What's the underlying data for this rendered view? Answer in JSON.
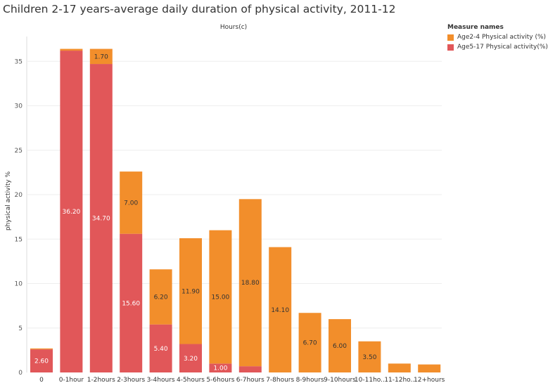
{
  "chart_data": {
    "type": "bar",
    "stacked": true,
    "title": "Children 2-17 years-average daily duration of physical activity, 2011-12",
    "xlabel": "Hours(c)",
    "ylabel": "physical activity %",
    "ylim": [
      0,
      37.5
    ],
    "yticks": [
      0,
      5,
      10,
      15,
      20,
      25,
      30,
      35
    ],
    "grid": true,
    "legend_title": "Measure names",
    "legend_position": "top-right",
    "categories": [
      "0",
      "0-1hour",
      "1-2hours",
      "2-3hours",
      "3-4hours",
      "4-5hours",
      "5-6hours",
      "6-7hours",
      "7-8hours",
      "8-9hours",
      "9-10hours",
      "10-11ho..",
      "11-12ho..",
      "12+hours"
    ],
    "series": [
      {
        "name": "Age5-17 Physical activity(%)",
        "color": "#e15759",
        "values": [
          2.6,
          36.2,
          34.7,
          15.6,
          5.4,
          3.2,
          1.0,
          0.7,
          0,
          0,
          0,
          0,
          0,
          0
        ],
        "labels": [
          "2.60",
          "36.20",
          "34.70",
          "15.60",
          "5.40",
          "3.20",
          "1.00",
          "",
          "",
          "",
          "",
          "",
          "",
          ""
        ]
      },
      {
        "name": "Age2-4 Physical activity (%)",
        "color": "#f28e2b",
        "values": [
          0.1,
          0.2,
          1.7,
          7.0,
          6.2,
          11.9,
          15.0,
          18.8,
          14.1,
          6.7,
          6.0,
          3.5,
          1.0,
          0.9
        ],
        "labels": [
          "",
          "",
          "1.70",
          "7.00",
          "6.20",
          "11.90",
          "15.00",
          "18.80",
          "14.10",
          "6.70",
          "6.00",
          "3.50",
          "",
          ""
        ]
      }
    ]
  }
}
